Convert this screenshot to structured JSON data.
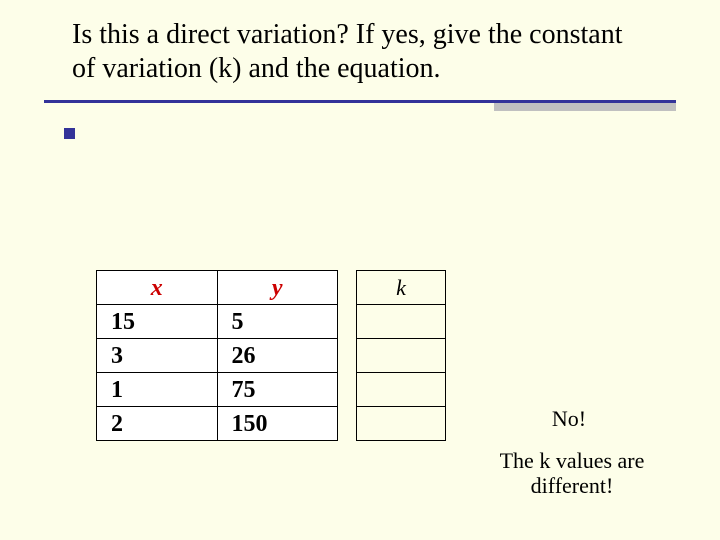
{
  "slide": {
    "title": "Is this a direct variation?  If yes, give the constant of variation (k) and the equation.",
    "background_color": "#fdfee9",
    "accent_color": "#333399",
    "title_fontsize": 28
  },
  "xy_table": {
    "type": "table",
    "columns": [
      "x",
      "y"
    ],
    "header_color": "#cc0000",
    "header_style": "bold-italic",
    "cell_fontsize": 24,
    "cell_fontweight": "bold",
    "border_color": "#000000",
    "background_color": "#ffffff",
    "rows": [
      [
        "15",
        "5"
      ],
      [
        "3",
        "26"
      ],
      [
        "1",
        "75"
      ],
      [
        "2",
        "150"
      ]
    ]
  },
  "k_table": {
    "type": "table",
    "header": "k",
    "header_style": "italic",
    "header_fontsize": 22,
    "border_color": "#000000",
    "rows": [
      "",
      "",
      "",
      ""
    ]
  },
  "answers": {
    "no": "No!",
    "explain": "The k values are different!",
    "fontsize": 22
  }
}
